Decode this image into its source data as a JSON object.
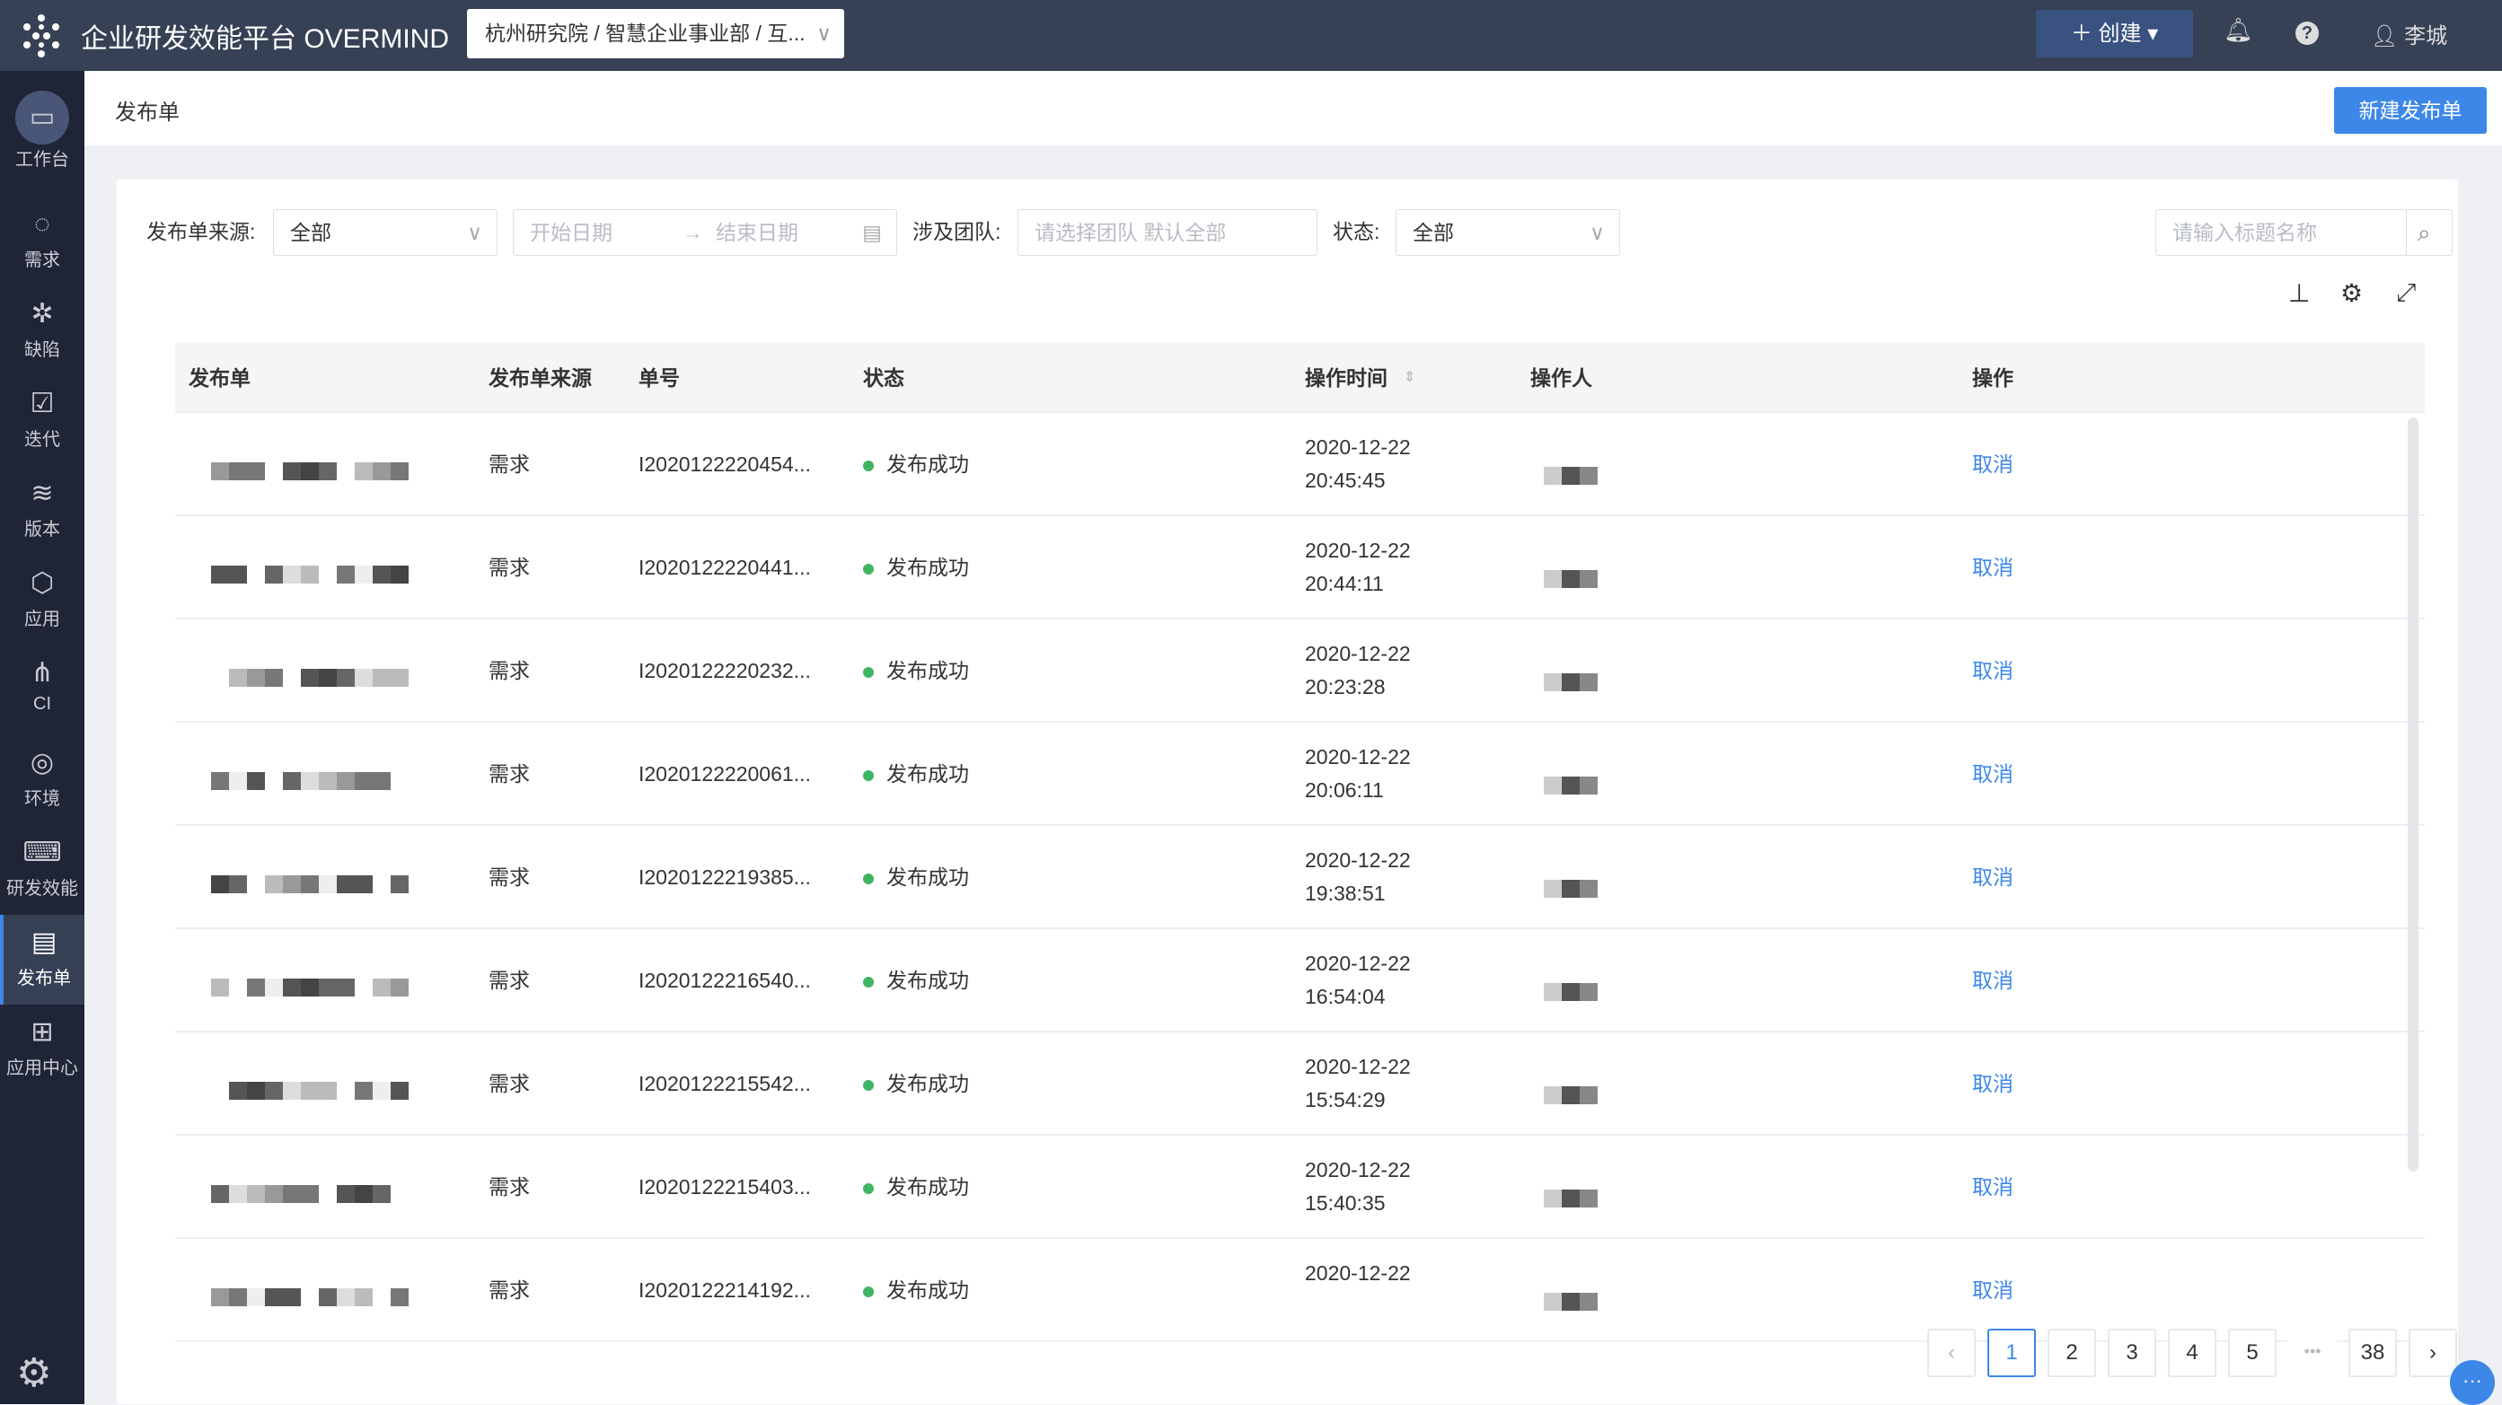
{
  "header": {
    "app_title": "企业研发效能平台 OVERMIND",
    "org_path": "杭州研究院 / 智慧企业事业部 / 互...",
    "create_label": "创建",
    "user_name": "李城"
  },
  "sidebar": {
    "items": [
      {
        "label": "工作台",
        "icon": "monitor-icon",
        "glyph": "▭"
      },
      {
        "label": "需求",
        "icon": "lightbulb-icon",
        "glyph": "◌"
      },
      {
        "label": "缺陷",
        "icon": "bug-icon",
        "glyph": "✲"
      },
      {
        "label": "迭代",
        "icon": "calendar-check-icon",
        "glyph": "☑"
      },
      {
        "label": "版本",
        "icon": "layers-icon",
        "glyph": "≋"
      },
      {
        "label": "应用",
        "icon": "cube-icon",
        "glyph": "⬡"
      },
      {
        "label": "CI",
        "icon": "hierarchy-icon",
        "glyph": "⋔"
      },
      {
        "label": "环境",
        "icon": "location-pin-icon",
        "glyph": "◎"
      },
      {
        "label": "研发效能",
        "icon": "code-window-icon",
        "glyph": "⌨"
      },
      {
        "label": "发布单",
        "icon": "document-icon",
        "glyph": "▤",
        "active": true
      },
      {
        "label": "应用中心",
        "icon": "grid-icon",
        "glyph": "⊞"
      }
    ]
  },
  "page": {
    "title": "发布单",
    "new_button": "新建发布单"
  },
  "filters": {
    "source_label": "发布单来源:",
    "source_value": "全部",
    "start_placeholder": "开始日期",
    "end_placeholder": "结束日期",
    "team_label": "涉及团队:",
    "team_placeholder": "请选择团队 默认全部",
    "status_label": "状态:",
    "status_value": "全部",
    "search_placeholder": "请输入标题名称"
  },
  "table": {
    "columns": [
      "发布单",
      "发布单来源",
      "单号",
      "状态",
      "操作时间",
      "操作人",
      "操作"
    ],
    "rows": [
      {
        "source": "需求",
        "number": "I2020122220454...",
        "status": "发布成功",
        "date": "2020-12-22",
        "time": "20:45:45",
        "action": "取消"
      },
      {
        "source": "需求",
        "number": "I2020122220441...",
        "status": "发布成功",
        "date": "2020-12-22",
        "time": "20:44:11",
        "action": "取消"
      },
      {
        "source": "需求",
        "number": "I2020122220232...",
        "status": "发布成功",
        "date": "2020-12-22",
        "time": "20:23:28",
        "action": "取消"
      },
      {
        "source": "需求",
        "number": "I2020122220061...",
        "status": "发布成功",
        "date": "2020-12-22",
        "time": "20:06:11",
        "action": "取消"
      },
      {
        "source": "需求",
        "number": "I2020122219385...",
        "status": "发布成功",
        "date": "2020-12-22",
        "time": "19:38:51",
        "action": "取消"
      },
      {
        "source": "需求",
        "number": "I2020122216540...",
        "status": "发布成功",
        "date": "2020-12-22",
        "time": "16:54:04",
        "action": "取消"
      },
      {
        "source": "需求",
        "number": "I2020122215542...",
        "status": "发布成功",
        "date": "2020-12-22",
        "time": "15:54:29",
        "action": "取消"
      },
      {
        "source": "需求",
        "number": "I2020122215403...",
        "status": "发布成功",
        "date": "2020-12-22",
        "time": "15:40:35",
        "action": "取消"
      },
      {
        "source": "需求",
        "number": "I2020122214192...",
        "status": "发布成功",
        "date": "2020-12-22",
        "time": "",
        "action": "取消"
      }
    ]
  },
  "pagination": {
    "pages": [
      "1",
      "2",
      "3",
      "4",
      "5"
    ],
    "ellipsis": "•••",
    "last": "38",
    "current": "1"
  },
  "colors": {
    "accent": "#3d87e8",
    "topbar": "#374156",
    "sidebar": "#1f2536",
    "success": "#3fb564"
  }
}
